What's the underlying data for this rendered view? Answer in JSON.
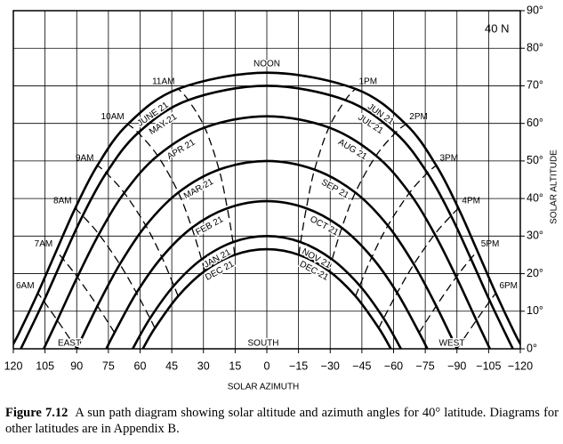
{
  "chart_data": {
    "type": "sunpath",
    "latitude_label": "40 N",
    "xlabel": "SOLAR AZIMUTH",
    "ylabel": "SOLAR ALTITUDE",
    "annotations": {
      "noon": "NOON",
      "east": "EAST",
      "south": "SOUTH",
      "west": "WEST"
    },
    "xlim": [
      120,
      -120
    ],
    "ylim": [
      0,
      90
    ],
    "xticks": [
      120,
      105,
      90,
      75,
      60,
      45,
      30,
      15,
      0,
      {
        "value": -15,
        "label": "−15"
      },
      {
        "value": -30,
        "label": "−30"
      },
      {
        "value": -45,
        "label": "−45"
      },
      {
        "value": -60,
        "label": "−60"
      },
      {
        "value": -75,
        "label": "−75"
      },
      {
        "value": -90,
        "label": "−90"
      },
      {
        "value": -105,
        "label": "−105"
      },
      {
        "value": -120,
        "label": "−120"
      }
    ],
    "yticks": [
      {
        "value": 0,
        "label": "0°"
      },
      {
        "value": 10,
        "label": "10°"
      },
      {
        "value": 20,
        "label": "20°"
      },
      {
        "value": 30,
        "label": "30°"
      },
      {
        "value": 40,
        "label": "40°"
      },
      {
        "value": 50,
        "label": "50°"
      },
      {
        "value": 60,
        "label": "60°"
      },
      {
        "value": 70,
        "label": "70°"
      },
      {
        "value": 80,
        "label": "80°"
      },
      {
        "value": 90,
        "label": "90°"
      }
    ],
    "grid": true,
    "color": "#000000",
    "dates": [
      {
        "labels": [
          "JUNE 21",
          "JUN 21"
        ],
        "x": [
          121.3,
          117.3,
          108.4,
          99.7,
          90.7,
          80.2,
          65.8,
          41.9,
          0,
          -41.9,
          -65.8,
          -80.2,
          -90.7,
          -99.7,
          -108.4,
          -117.3,
          -121.3
        ],
        "y": [
          0,
          4.2,
          14.8,
          26.0,
          37.4,
          48.8,
          59.8,
          69.2,
          73.5,
          69.2,
          59.8,
          48.8,
          37.4,
          26.0,
          14.8,
          4.2,
          0
        ]
      },
      {
        "labels": [
          "MAY 21",
          "JUL 21"
        ],
        "x": [
          116.5,
          114.8,
          105.6,
          96.6,
          87.2,
          76.0,
          60.9,
          37.2,
          0,
          -37.2,
          -60.9,
          -76.0,
          -87.2,
          -96.6,
          -105.6,
          -114.8,
          -116.5
        ],
        "y": [
          0,
          1.9,
          12.7,
          24.0,
          35.4,
          46.8,
          57.5,
          66.2,
          70,
          66.2,
          57.5,
          46.8,
          35.4,
          24.0,
          12.7,
          1.9,
          0
        ]
      },
      {
        "labels": [
          "APR 21",
          "AUG 21"
        ],
        "x": [
          105.6,
          99.2,
          89.7,
          79.5,
          67.5,
          51.7,
          29.4,
          0,
          -29.4,
          -51.7,
          -67.5,
          -79.5,
          -89.7,
          -99.2,
          -105.6
        ],
        "y": [
          0,
          7.6,
          19.1,
          30.5,
          41.5,
          51.4,
          58.9,
          61.9,
          58.9,
          51.4,
          41.5,
          30.5,
          19.1,
          7.6,
          0
        ]
      },
      {
        "labels": [
          "MAR 21",
          "SEP 21"
        ],
        "x": [
          90,
          80.2,
          69.6,
          57.3,
          41.9,
          22.6,
          0,
          -22.6,
          -41.9,
          -57.3,
          -69.6,
          -80.2,
          -90
        ],
        "y": [
          0,
          11.4,
          22.5,
          32.8,
          41.6,
          47.7,
          50,
          47.7,
          41.6,
          32.8,
          22.5,
          11.4,
          0
        ]
      },
      {
        "labels": [
          "FEB 21",
          "OCT 21"
        ],
        "x": [
          76.0,
          72.1,
          61.7,
          49.7,
          35.5,
          18.7,
          0,
          -18.7,
          -35.5,
          -49.7,
          -61.7,
          -72.1,
          -76.0
        ],
        "y": [
          0,
          4.3,
          14.9,
          24.4,
          32.2,
          37.4,
          39.3,
          37.4,
          32.2,
          24.4,
          14.9,
          4.3,
          0
        ]
      },
      {
        "labels": [
          "JAN 21",
          "NOV 21"
        ],
        "x": [
          63.5,
          55.3,
          44.0,
          30.9,
          16.0,
          0,
          -16.0,
          -30.9,
          -44.0,
          -55.3,
          -63.5
        ],
        "y": [
          0,
          8.1,
          16.8,
          23.8,
          28.4,
          30,
          28.4,
          23.8,
          16.8,
          8.1,
          0
        ]
      },
      {
        "labels": [
          "DEC 21",
          "DEC 21"
        ],
        "x": [
          58.7,
          53.0,
          42.0,
          29.4,
          15.2,
          0,
          -15.2,
          -29.4,
          -42.0,
          -53.0,
          -58.7
        ],
        "y": [
          0,
          5.5,
          14.0,
          20.7,
          25.0,
          26.5,
          25.0,
          20.7,
          14.0,
          5.5,
          0
        ]
      }
    ],
    "hours": [
      {
        "name": "6AM",
        "x": [
          90,
          99.2,
          105.6,
          108.4
        ],
        "y": [
          0,
          7.6,
          12.7,
          14.8
        ]
      },
      {
        "name": "7AM",
        "x": [
          72.1,
          80.2,
          89.7,
          96.6,
          99.7
        ],
        "y": [
          4.3,
          11.4,
          19.1,
          24.0,
          26.0
        ]
      },
      {
        "name": "8AM",
        "x": [
          53.0,
          55.3,
          61.7,
          69.6,
          79.5,
          87.2,
          90.7
        ],
        "y": [
          5.5,
          8.1,
          14.9,
          22.5,
          30.5,
          35.4,
          37.4
        ]
      },
      {
        "name": "9AM",
        "x": [
          42.0,
          44.0,
          49.7,
          57.3,
          67.5,
          76.0,
          80.2
        ],
        "y": [
          14.0,
          16.8,
          24.4,
          32.8,
          41.5,
          46.8,
          48.8
        ]
      },
      {
        "name": "10AM",
        "x": [
          29.4,
          30.9,
          35.5,
          41.9,
          51.7,
          60.9,
          65.8
        ],
        "y": [
          20.7,
          23.8,
          32.2,
          41.6,
          51.4,
          57.5,
          59.8
        ]
      },
      {
        "name": "11AM",
        "x": [
          15.2,
          16.0,
          18.7,
          22.6,
          29.4,
          37.2,
          41.9
        ],
        "y": [
          25.0,
          28.4,
          37.4,
          47.7,
          58.9,
          66.2,
          69.2
        ]
      },
      {
        "name": "1PM",
        "x": [
          -15.2,
          -16.0,
          -18.7,
          -22.6,
          -29.4,
          -37.2,
          -41.9
        ],
        "y": [
          25.0,
          28.4,
          37.4,
          47.7,
          58.9,
          66.2,
          69.2
        ]
      },
      {
        "name": "2PM",
        "x": [
          -29.4,
          -30.9,
          -35.5,
          -41.9,
          -51.7,
          -60.9,
          -65.8
        ],
        "y": [
          20.7,
          23.8,
          32.2,
          41.6,
          51.4,
          57.5,
          59.8
        ]
      },
      {
        "name": "3PM",
        "x": [
          -42.0,
          -44.0,
          -49.7,
          -57.3,
          -67.5,
          -76.0,
          -80.2
        ],
        "y": [
          14.0,
          16.8,
          24.4,
          32.8,
          41.5,
          46.8,
          48.8
        ]
      },
      {
        "name": "4PM",
        "x": [
          -53.0,
          -55.3,
          -61.7,
          -69.6,
          -79.5,
          -87.2,
          -90.7
        ],
        "y": [
          5.5,
          8.1,
          14.9,
          22.5,
          30.5,
          35.4,
          37.4
        ]
      },
      {
        "name": "5PM",
        "x": [
          -72.1,
          -80.2,
          -89.7,
          -96.6,
          -99.7
        ],
        "y": [
          4.3,
          11.4,
          19.1,
          24.0,
          26.0
        ]
      },
      {
        "name": "6PM",
        "x": [
          -90,
          -99.2,
          -105.6,
          -108.4
        ],
        "y": [
          0,
          7.6,
          12.7,
          14.8
        ]
      }
    ]
  },
  "caption": {
    "figure": "Figure 7.12",
    "text": "A sun path diagram showing solar altitude and azimuth angles for 40° latitude. Diagrams for other latitudes are in Appendix B."
  }
}
